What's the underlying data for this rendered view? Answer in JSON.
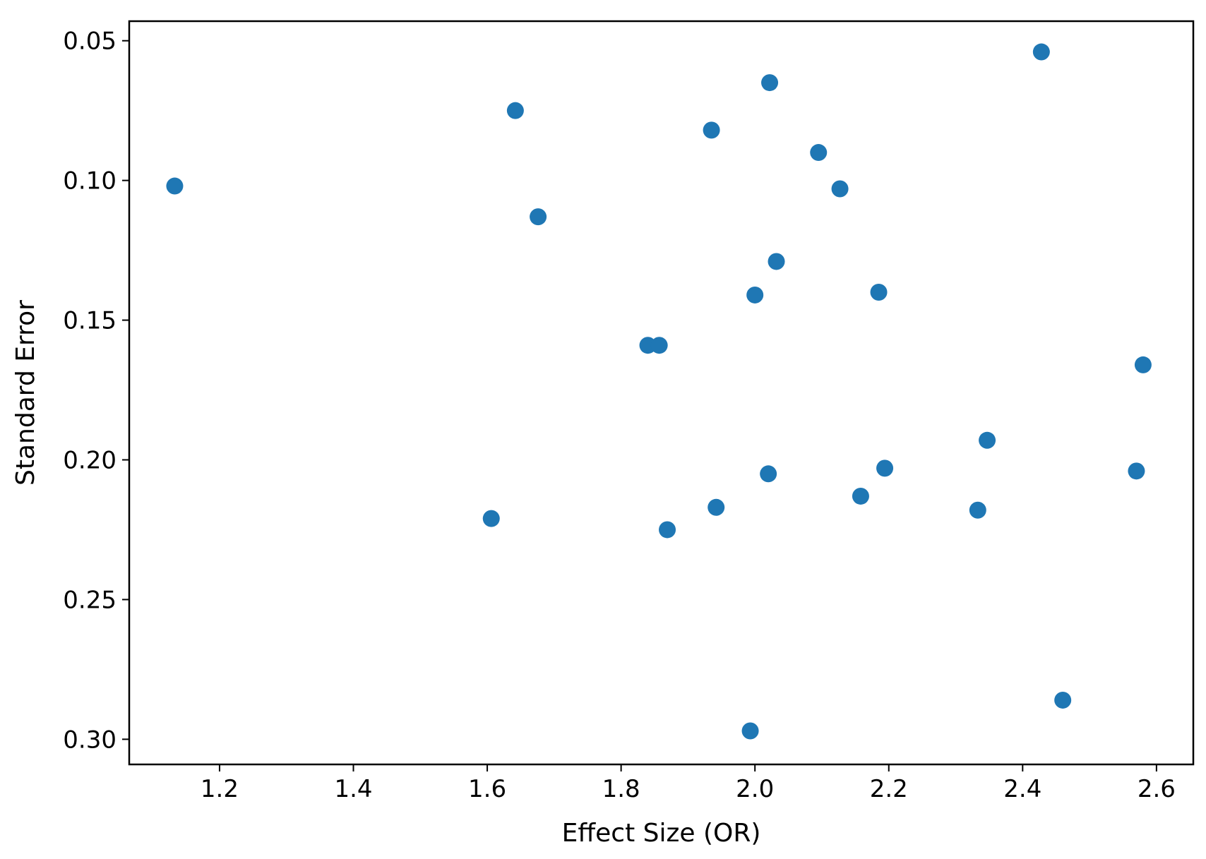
{
  "chart_data": {
    "type": "scatter",
    "xlabel": "Effect Size (OR)",
    "ylabel": "Standard Error",
    "xlim": [
      1.065,
      2.655
    ],
    "ylim": [
      0.043,
      0.309
    ],
    "y_inverted": true,
    "grid": false,
    "legend": "none",
    "marker_color": "#1f77b4",
    "xticks": [
      1.2,
      1.4,
      1.6,
      1.8,
      2.0,
      2.2,
      2.4,
      2.6
    ],
    "xtick_labels": [
      "1.2",
      "1.4",
      "1.6",
      "1.8",
      "2.0",
      "2.2",
      "2.4",
      "2.6"
    ],
    "yticks": [
      0.05,
      0.1,
      0.15,
      0.2,
      0.25,
      0.3
    ],
    "ytick_labels": [
      "0.05",
      "0.10",
      "0.15",
      "0.20",
      "0.25",
      "0.30"
    ],
    "points": [
      {
        "x": 1.133,
        "y": 0.102
      },
      {
        "x": 1.642,
        "y": 0.075
      },
      {
        "x": 1.676,
        "y": 0.113
      },
      {
        "x": 1.606,
        "y": 0.221
      },
      {
        "x": 1.84,
        "y": 0.159
      },
      {
        "x": 1.857,
        "y": 0.159
      },
      {
        "x": 1.869,
        "y": 0.225
      },
      {
        "x": 1.935,
        "y": 0.082
      },
      {
        "x": 1.942,
        "y": 0.217
      },
      {
        "x": 2.022,
        "y": 0.065
      },
      {
        "x": 2.0,
        "y": 0.141
      },
      {
        "x": 2.032,
        "y": 0.129
      },
      {
        "x": 2.02,
        "y": 0.205
      },
      {
        "x": 1.993,
        "y": 0.297
      },
      {
        "x": 2.095,
        "y": 0.09
      },
      {
        "x": 2.127,
        "y": 0.103
      },
      {
        "x": 2.185,
        "y": 0.14
      },
      {
        "x": 2.194,
        "y": 0.203
      },
      {
        "x": 2.158,
        "y": 0.213
      },
      {
        "x": 2.428,
        "y": 0.054
      },
      {
        "x": 2.347,
        "y": 0.193
      },
      {
        "x": 2.333,
        "y": 0.218
      },
      {
        "x": 2.46,
        "y": 0.286
      },
      {
        "x": 2.58,
        "y": 0.166
      },
      {
        "x": 2.57,
        "y": 0.204
      }
    ]
  }
}
